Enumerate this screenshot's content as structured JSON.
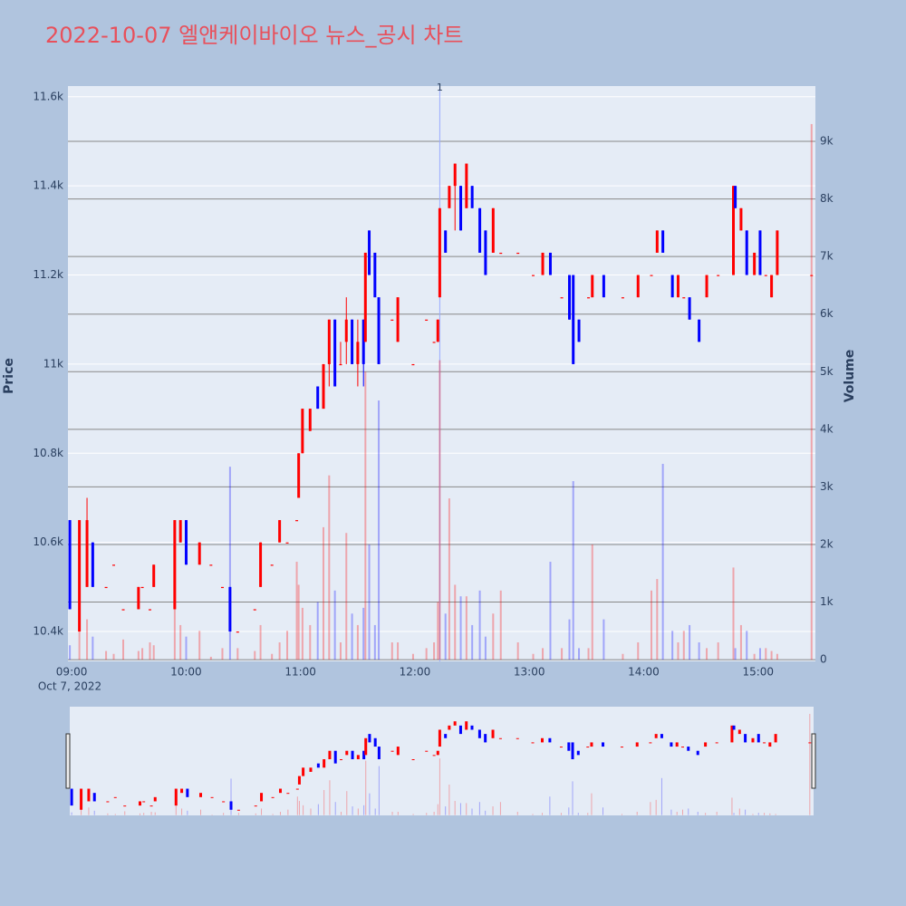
{
  "chart_data": {
    "type": "candlestick",
    "title": "2022-10-07 엘앤케이바이오 뉴스_공시 차트",
    "y_label": "Price",
    "y2_label": "Volume",
    "x_date_label": "Oct 7, 2022",
    "increasing_color": "#ff0000",
    "decreasing_color": "#0000ff",
    "xlim": [
      "08:59",
      "15:31"
    ],
    "xticks": [
      "09:00",
      "10:00",
      "11:00",
      "12:00",
      "13:00",
      "14:00",
      "15:00"
    ],
    "ylim": [
      10333,
      11624
    ],
    "yticks": [
      {
        "value": 10400,
        "label": "10.4k"
      },
      {
        "value": 10600,
        "label": "10.6k"
      },
      {
        "value": 10800,
        "label": "10.8k"
      },
      {
        "value": 11000,
        "label": "11k"
      },
      {
        "value": 11200,
        "label": "11.2k"
      },
      {
        "value": 11400,
        "label": "11.4k"
      },
      {
        "value": 11600,
        "label": "11.6k"
      }
    ],
    "y2lim": [
      -30,
      9960
    ],
    "y2ticks": [
      0,
      {
        "value": 1000,
        "label": "1k"
      },
      {
        "value": 2000,
        "label": "2k"
      },
      {
        "value": 3000,
        "label": "3k"
      },
      {
        "value": 4000,
        "label": "4k"
      },
      {
        "value": 5000,
        "label": "5k"
      },
      {
        "value": 6000,
        "label": "6k"
      },
      {
        "value": 7000,
        "label": "7k"
      },
      {
        "value": 8000,
        "label": "8k"
      },
      {
        "value": 9000,
        "label": "9k"
      }
    ],
    "annotation": {
      "x": "12:14",
      "text": "1"
    },
    "x": [
      "09:00",
      "09:05",
      "09:09",
      "09:12",
      "09:19",
      "09:23",
      "09:28",
      "09:36",
      "09:38",
      "09:42",
      "09:44",
      "09:55",
      "09:58",
      "10:01",
      "10:08",
      "10:14",
      "10:20",
      "10:24",
      "10:28",
      "10:37",
      "10:40",
      "10:46",
      "10:50",
      "10:54",
      "10:59",
      "11:00",
      "11:02",
      "11:06",
      "11:10",
      "11:13",
      "11:16",
      "11:19",
      "11:22",
      "11:25",
      "11:28",
      "11:31",
      "11:34",
      "11:35",
      "11:37",
      "11:40",
      "11:42",
      "11:49",
      "11:52",
      "12:00",
      "12:07",
      "12:11",
      "12:13",
      "12:14",
      "12:17",
      "12:19",
      "12:22",
      "12:25",
      "12:28",
      "12:31",
      "12:35",
      "12:38",
      "12:42",
      "12:46",
      "12:55",
      "13:03",
      "13:08",
      "13:12",
      "13:18",
      "13:22",
      "13:24",
      "13:27",
      "13:32",
      "13:34",
      "13:40",
      "13:50",
      "13:58",
      "14:05",
      "14:08",
      "14:11",
      "14:16",
      "14:19",
      "14:22",
      "14:25",
      "14:30",
      "14:34",
      "14:40",
      "14:48",
      "14:49",
      "14:52",
      "14:55",
      "14:59",
      "15:02",
      "15:05",
      "15:08",
      "15:11",
      "15:29"
    ],
    "open": [
      10650,
      10400,
      10500,
      10600,
      10500,
      10550,
      10450,
      10450,
      10500,
      10450,
      10500,
      10450,
      10600,
      10650,
      10550,
      10550,
      10500,
      10500,
      10400,
      10450,
      10500,
      10550,
      10600,
      10600,
      10650,
      10700,
      10800,
      10850,
      10950,
      10900,
      11000,
      11100,
      11000,
      11050,
      11100,
      11000,
      11100,
      11050,
      11300,
      11250,
      11150,
      11100,
      11050,
      11000,
      11100,
      11050,
      11050,
      11150,
      11300,
      11350,
      11400,
      11400,
      11350,
      11400,
      11350,
      11300,
      11250,
      11250,
      11250,
      11200,
      11200,
      11250,
      11150,
      11200,
      11200,
      11100,
      11150,
      11150,
      11200,
      11150,
      11150,
      11200,
      11250,
      11300,
      11200,
      11150,
      11150,
      11150,
      11100,
      11150,
      11200,
      11200,
      11400,
      11300,
      11300,
      11200,
      11300,
      11200,
      11150,
      11200,
      11200
    ],
    "high": [
      10650,
      10650,
      10700,
      10600,
      10500,
      10550,
      10450,
      10500,
      10500,
      10450,
      10550,
      10650,
      10650,
      10650,
      10600,
      10550,
      10500,
      10500,
      10400,
      10450,
      10600,
      10550,
      10650,
      10600,
      10650,
      10800,
      10900,
      10900,
      10950,
      11000,
      11100,
      11100,
      11050,
      11150,
      11100,
      11100,
      11100,
      11250,
      11300,
      11250,
      11150,
      11100,
      11150,
      11000,
      11100,
      11050,
      11100,
      11350,
      11300,
      11400,
      11450,
      11400,
      11450,
      11400,
      11350,
      11300,
      11350,
      11250,
      11250,
      11200,
      11250,
      11250,
      11150,
      11200,
      11200,
      11100,
      11150,
      11200,
      11200,
      11150,
      11200,
      11200,
      11300,
      11300,
      11200,
      11200,
      11150,
      11150,
      11100,
      11200,
      11200,
      11400,
      11400,
      11350,
      11300,
      11250,
      11300,
      11200,
      11200,
      11300,
      11200
    ],
    "low": [
      10450,
      10400,
      10500,
      10500,
      10500,
      10550,
      10450,
      10450,
      10500,
      10450,
      10500,
      10450,
      10600,
      10550,
      10550,
      10550,
      10500,
      10400,
      10400,
      10450,
      10500,
      10550,
      10600,
      10600,
      10650,
      10700,
      10800,
      10850,
      10900,
      10900,
      10950,
      10950,
      11000,
      11000,
      11000,
      10950,
      10950,
      11050,
      11200,
      11150,
      11000,
      11100,
      11050,
      11000,
      11100,
      11050,
      11050,
      11150,
      11250,
      11350,
      11300,
      11300,
      11350,
      11350,
      11250,
      11200,
      11250,
      11250,
      11250,
      11200,
      11200,
      11200,
      11150,
      11100,
      11000,
      11050,
      11150,
      11150,
      11150,
      11150,
      11150,
      11200,
      11250,
      11250,
      11150,
      11150,
      11150,
      11100,
      11050,
      11150,
      11200,
      11200,
      11350,
      11300,
      11200,
      11200,
      11200,
      11200,
      11150,
      11200,
      11200
    ],
    "close": [
      10450,
      10650,
      10650,
      10500,
      10500,
      10550,
      10450,
      10500,
      10500,
      10450,
      10550,
      10650,
      10650,
      10550,
      10600,
      10550,
      10500,
      10400,
      10400,
      10450,
      10600,
      10550,
      10650,
      10600,
      10650,
      10800,
      10900,
      10900,
      10900,
      11000,
      11100,
      10950,
      11000,
      11100,
      11000,
      11050,
      11000,
      11250,
      11200,
      11150,
      11000,
      11100,
      11150,
      11000,
      11100,
      11050,
      11100,
      11350,
      11250,
      11400,
      11450,
      11300,
      11450,
      11350,
      11250,
      11200,
      11350,
      11250,
      11250,
      11200,
      11250,
      11200,
      11150,
      11100,
      11000,
      11050,
      11150,
      11200,
      11150,
      11150,
      11200,
      11200,
      11300,
      11250,
      11150,
      11200,
      11150,
      11100,
      11050,
      11200,
      11200,
      11400,
      11350,
      11350,
      11200,
      11250,
      11200,
      11200,
      11200,
      11300,
      11200
    ],
    "volume": [
      250,
      1000,
      700,
      400,
      150,
      100,
      350,
      150,
      200,
      300,
      250,
      1150,
      600,
      400,
      500,
      50,
      200,
      3350,
      200,
      150,
      600,
      100,
      300,
      500,
      1700,
      1300,
      900,
      600,
      1000,
      2300,
      3200,
      1200,
      300,
      2200,
      800,
      600,
      900,
      5000,
      2000,
      600,
      4500,
      300,
      300,
      100,
      200,
      300,
      1000,
      5200,
      800,
      2800,
      1300,
      1100,
      1100,
      600,
      1200,
      400,
      800,
      1200,
      300,
      100,
      200,
      1700,
      200,
      700,
      3100,
      200,
      200,
      2000,
      700,
      100,
      300,
      1200,
      1400,
      3400,
      500,
      300,
      500,
      600,
      300,
      200,
      300,
      1600,
      200,
      600,
      500,
      100,
      200,
      200,
      150,
      100,
      9300
    ]
  }
}
